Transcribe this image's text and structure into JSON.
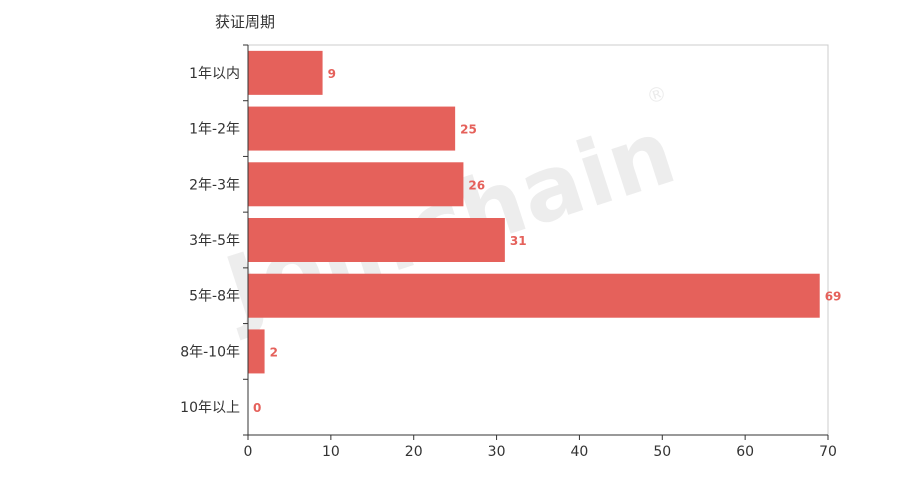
{
  "chart_data": {
    "type": "bar",
    "orientation": "horizontal",
    "ylabel": "获证周期",
    "categories": [
      "1年以内",
      "1年-2年",
      "2年-3年",
      "3年-5年",
      "5年-8年",
      "8年-10年",
      "10年以上"
    ],
    "values": [
      9,
      25,
      26,
      31,
      69,
      2,
      0
    ],
    "xlim": [
      0,
      70
    ],
    "xticks": [
      0,
      10,
      20,
      30,
      40,
      50,
      60,
      70
    ],
    "grid": false,
    "data_labels": true,
    "bar_color": "#e5615b",
    "label_color": "#e5615b"
  },
  "watermark": {
    "text": "Joinchain",
    "mark": "®"
  }
}
